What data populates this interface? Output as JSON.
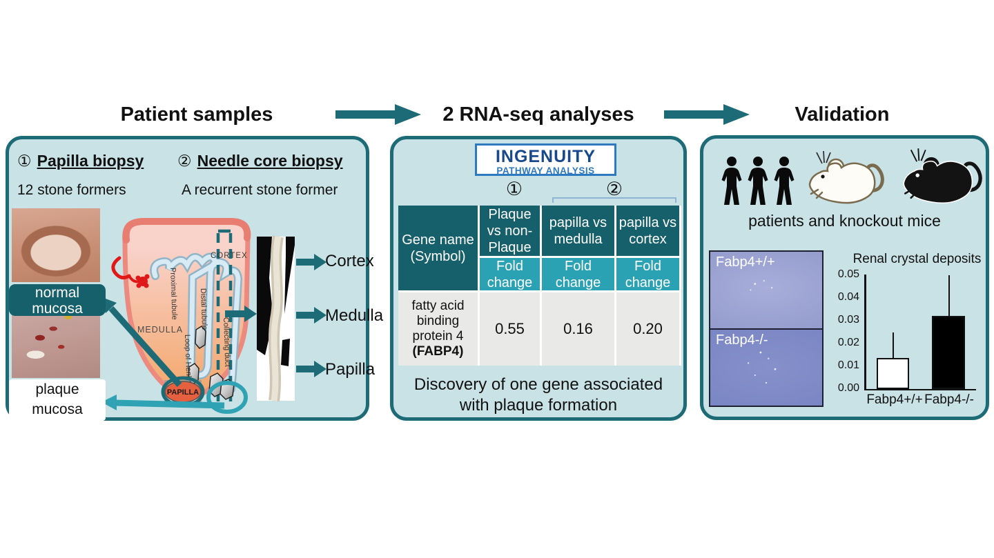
{
  "header": {
    "patient_title": "Patient samples",
    "rnaseq_title": "2 RNA-seq analyses",
    "validation_title": "Validation"
  },
  "patient_panel": {
    "biopsy1": {
      "num": "①",
      "title": "Papilla biopsy",
      "subtitle": "12 stone formers"
    },
    "biopsy2": {
      "num": "②",
      "title": "Needle core biopsy",
      "subtitle": "A recurrent stone former"
    },
    "normal_mucosa_label": "normal mucosa",
    "plaque_mucosa_label": "plaque mucosa",
    "kidney": {
      "cortex": "CORTEX",
      "medulla": "MEDULLA",
      "papilla": "PAPILLA",
      "proximal_tubule": "Proximal tubule",
      "distal_tubule": "Distal tubule",
      "loop_of_henle": "Loop of Henle",
      "collecting_duct": "Collecting duct"
    },
    "core_labels": [
      "Cortex",
      "Medulla",
      "Papilla"
    ]
  },
  "rnaseq_panel": {
    "logo": {
      "line1": "INGENUITY",
      "line2": "PATHWAY ANALYSIS"
    },
    "group1_num": "①",
    "group2_num": "②",
    "table": {
      "gene_header": "Gene name (Symbol)",
      "columns": [
        "Plaque vs non-Plaque",
        "papilla vs medulla",
        "papilla vs cortex"
      ],
      "fold_change_label": "Fold change",
      "gene_name": "fatty acid binding protein 4",
      "gene_symbol": "(FABP4)",
      "values": [
        "0.55",
        "0.16",
        "0.20"
      ]
    },
    "caption": "Discovery of one gene associated with plaque formation"
  },
  "validation_panel": {
    "subjects_caption": "patients and knockout mice",
    "micrographs": [
      "Fabp4+/+",
      "Fabp4-/-"
    ]
  },
  "chart_data": {
    "type": "bar",
    "title": "Renal crystal deposits",
    "categories": [
      "Fabp4+/+",
      "Fabp4-/-"
    ],
    "values": [
      0.0135,
      0.032
    ],
    "error_tops": [
      0.025,
      0.05
    ],
    "bar_colors": [
      "#ffffff",
      "#000000"
    ],
    "ylim": [
      0,
      0.05
    ],
    "yticks": [
      "0.05",
      "0.04",
      "0.03",
      "0.02",
      "0.01",
      "0.00"
    ],
    "xlabel": "",
    "ylabel": "",
    "grid": false,
    "legend_position": "none"
  },
  "colors": {
    "panel_border": "#1c6b76",
    "panel_bg": "#c9e2e5",
    "arrow_teal": "#1c6b76",
    "light_teal": "#2fa3b3",
    "table_header_bg": "#15606b",
    "fold_change_bg": "#2aa2b4",
    "data_row_bg": "#e9e9e7",
    "ingenuity_blue": "#17498c",
    "ingenuity_light_blue": "#2d7ac0",
    "micrograph_top": "#979fd0",
    "micrograph_bottom": "#7b87c5"
  }
}
